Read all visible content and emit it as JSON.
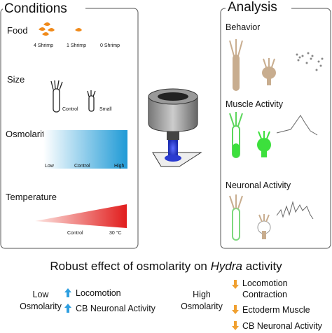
{
  "conditions": {
    "title": "Conditions",
    "food": {
      "label": "Food",
      "levels": [
        "4 Shrimp",
        "1 Shrimp",
        "0 Shrimp"
      ]
    },
    "size": {
      "label": "Size",
      "levels": [
        "Control",
        "Small"
      ]
    },
    "osmolarity": {
      "label": "Osmolarity",
      "levels": [
        "Low",
        "Control",
        "High"
      ]
    },
    "temperature": {
      "label": "Temperature",
      "levels": [
        "Control",
        "30 °C"
      ]
    }
  },
  "analysis": {
    "title": "Analysis",
    "panels": [
      "Behavior",
      "Muscle Activity",
      "Neuronal Activity"
    ]
  },
  "summary": {
    "title_parts": [
      "Robust effect of osmolarity on ",
      "Hydra",
      " activity"
    ],
    "low": {
      "label_lines": [
        "Low",
        "Osmolarity"
      ],
      "effects": [
        "Locomotion",
        "CB Neuronal Activity"
      ]
    },
    "high": {
      "label_lines": [
        "High",
        "Osmolarity"
      ],
      "effects": [
        "Locomotion",
        "Contraction",
        "Ectoderm Muscle",
        "CB Neuronal Activity"
      ]
    }
  }
}
